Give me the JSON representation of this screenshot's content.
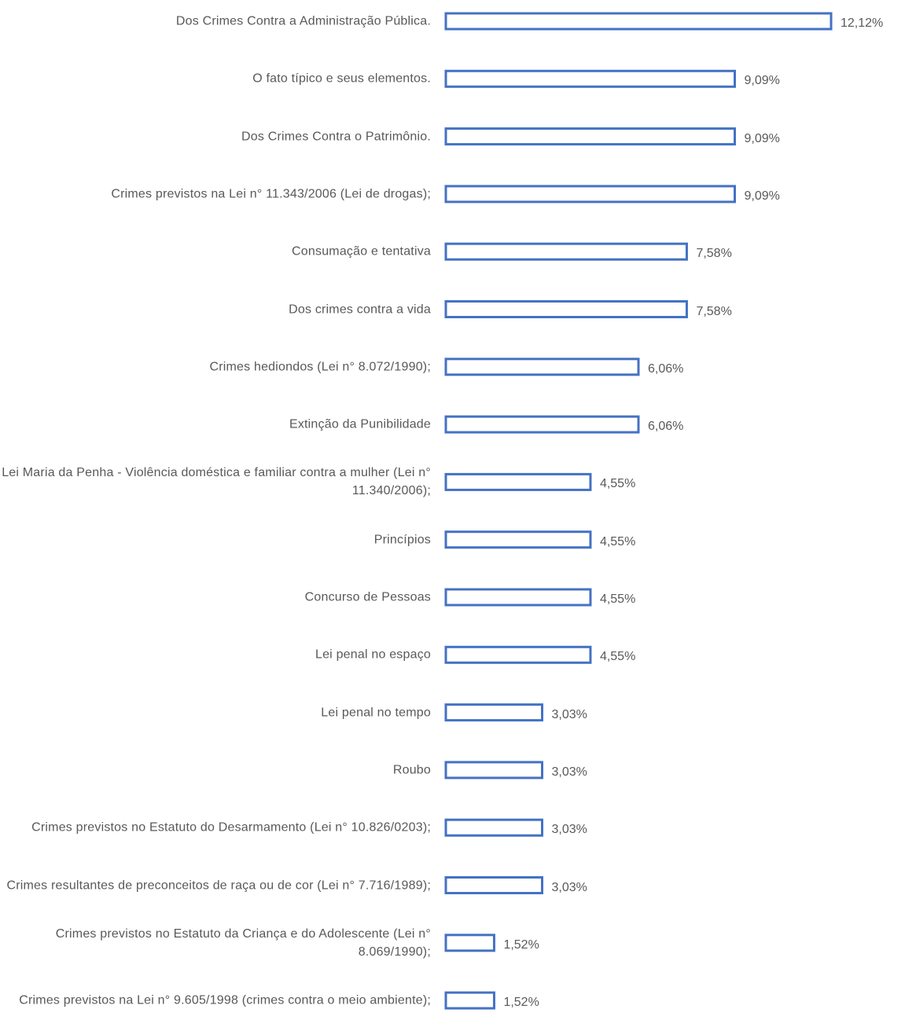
{
  "chart_data": {
    "type": "bar",
    "orientation": "horizontal",
    "color": "#4472c4",
    "fill": "none",
    "categories": [
      "Dos Crimes Contra a Administração Pública.",
      "O fato típico e seus elementos.",
      "Dos Crimes Contra o Patrimônio.",
      "Crimes previstos na Lei n° 11.343/2006 (Lei de drogas);",
      "Consumação e tentativa",
      "Dos crimes contra a vida",
      "Crimes hediondos (Lei n° 8.072/1990);",
      "Extinção da Punibilidade",
      "Lei Maria da Penha - Violência doméstica e familiar contra a mulher (Lei n° 11.340/2006);",
      "Princípios",
      "Concurso de Pessoas",
      "Lei penal no espaço",
      "Lei penal no tempo",
      "Roubo",
      "Crimes previstos no Estatuto do Desarmamento (Lei n° 10.826/0203);",
      "Crimes resultantes de preconceitos de raça ou de cor (Lei n° 7.716/1989);",
      "Crimes previstos no Estatuto da Criança e do Adolescente (Lei n° 8.069/1990);",
      "Crimes previstos na Lei n° 9.605/1998 (crimes contra o meio ambiente);"
    ],
    "values": [
      12.12,
      9.09,
      9.09,
      9.09,
      7.58,
      7.58,
      6.06,
      6.06,
      4.55,
      4.55,
      4.55,
      4.55,
      3.03,
      3.03,
      3.03,
      3.03,
      1.52,
      1.52
    ],
    "value_labels": [
      "12,12%",
      "9,09%",
      "9,09%",
      "9,09%",
      "7,58%",
      "7,58%",
      "6,06%",
      "6,06%",
      "4,55%",
      "4,55%",
      "4,55%",
      "4,55%",
      "3,03%",
      "3,03%",
      "3,03%",
      "3,03%",
      "1,52%",
      "1,52%"
    ]
  }
}
